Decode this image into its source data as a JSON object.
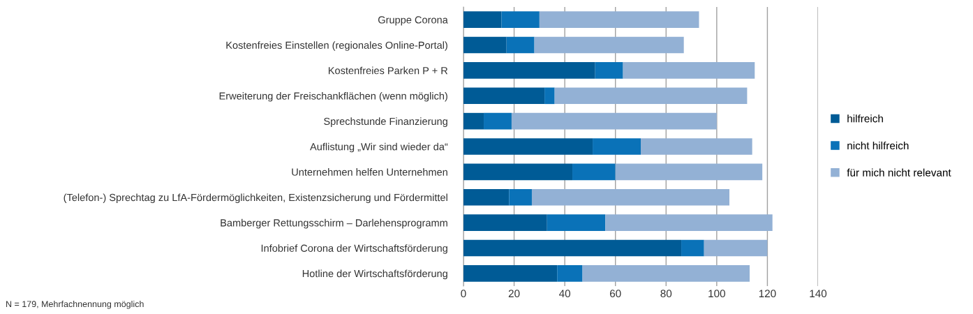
{
  "chart_data": {
    "type": "bar",
    "orientation": "horizontal",
    "stacked": true,
    "categories": [
      "Gruppe Corona",
      "Kostenfreies Einstellen (regionales Online-Portal)",
      "Kostenfreies Parken P + R",
      "Erweiterung der Freischankflächen (wenn möglich)",
      "Sprechstunde Finanzierung",
      "Auflistung „Wir sind wieder da“",
      "Unternehmen helfen Unternehmen",
      "(Telefon-) Sprechtag zu LfA-Fördermöglichkeiten, Existenzsicherung und Fördermittel",
      "Bamberger Rettungsschirm – Darlehensprogramm",
      "Infobrief Corona der Wirtschaftsförderung",
      "Hotline der Wirtschaftsförderung"
    ],
    "series": [
      {
        "name": "hilfreich",
        "color": "#005b96",
        "values": [
          15,
          17,
          52,
          32,
          8,
          51,
          43,
          18,
          33,
          86,
          37
        ]
      },
      {
        "name": "nicht hilfreich",
        "color": "#0a72b8",
        "values": [
          15,
          11,
          11,
          4,
          11,
          19,
          17,
          9,
          23,
          9,
          10
        ]
      },
      {
        "name": "für mich nicht relevant",
        "color": "#93b1d5",
        "values": [
          63,
          59,
          52,
          76,
          81,
          44,
          58,
          78,
          66,
          25,
          66
        ]
      }
    ],
    "xlim": [
      0,
      140
    ],
    "xticks": [
      0,
      20,
      40,
      60,
      80,
      100,
      120,
      140
    ],
    "grid": "x",
    "legend": "right",
    "marker": "square",
    "annotations": [
      "N = 179, Mehrfachnennung möglich"
    ]
  }
}
